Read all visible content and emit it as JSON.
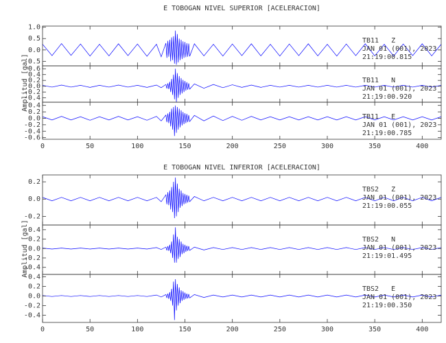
{
  "chart_data": [
    {
      "type": "line",
      "title": "E TOBOGAN NIVEL SUPERIOR [ACELERACION]",
      "ylabel": "Amplitud [gal]",
      "color": "#0000ff",
      "xlim": [
        0,
        420
      ],
      "xticks": [
        0,
        50,
        100,
        150,
        200,
        250,
        300,
        350,
        400
      ],
      "x": [
        0,
        10,
        20,
        30,
        40,
        50,
        60,
        70,
        80,
        90,
        100,
        110,
        120,
        125,
        130,
        131,
        132,
        133,
        134,
        135,
        136,
        137,
        138,
        139,
        140,
        141,
        142,
        143,
        144,
        145,
        146,
        147,
        148,
        149,
        150,
        151,
        152,
        153,
        154,
        155,
        160,
        170,
        180,
        190,
        200,
        210,
        220,
        230,
        240,
        250,
        260,
        270,
        280,
        290,
        300,
        310,
        320,
        330,
        340,
        350,
        360,
        370,
        380,
        390,
        400,
        410,
        420
      ],
      "panels": [
        {
          "station": "TB11   Z",
          "date": "JAN 01 (001), 2023",
          "time": "21:19:00.815",
          "ylim": [
            -0.7,
            1.05
          ],
          "yticks": [
            -0.5,
            {
              "value": 0,
              "label": "0.0"
            },
            0.5,
            {
              "value": 1,
              "label": "1.0"
            }
          ],
          "values": [
            0.25,
            -0.25,
            0.28,
            -0.24,
            0.26,
            -0.27,
            0.25,
            -0.26,
            0.27,
            -0.25,
            0.26,
            -0.28,
            0.25,
            -0.3,
            0.3,
            -0.35,
            0.4,
            -0.3,
            0.45,
            -0.5,
            0.55,
            -0.45,
            0.6,
            -0.6,
            0.85,
            -0.65,
            0.7,
            -0.55,
            0.5,
            -0.45,
            0.45,
            -0.4,
            0.38,
            -0.35,
            0.35,
            -0.32,
            0.3,
            -0.3,
            0.28,
            -0.28,
            0.27,
            -0.26,
            0.25,
            -0.27,
            0.26,
            -0.25,
            0.27,
            -0.26,
            0.25,
            -0.27,
            0.26,
            -0.25,
            0.27,
            -0.26,
            0.25,
            -0.27,
            0.26,
            -0.25,
            0.27,
            -0.26,
            0.25,
            -0.27,
            0.26,
            -0.25,
            0.27,
            -0.26,
            0.25
          ]
        },
        {
          "station": "TB11   N",
          "date": "JAN 01 (001), 2023",
          "time": "21:19:00.920",
          "ylim": [
            -0.55,
            0.7
          ],
          "yticks": [
            -0.4,
            -0.2,
            {
              "value": 0,
              "label": "0.0"
            },
            0.2,
            0.4,
            0.6
          ],
          "values": [
            0.03,
            -0.03,
            0.04,
            -0.03,
            0.03,
            -0.04,
            0.03,
            -0.03,
            0.04,
            -0.03,
            0.03,
            -0.04,
            0.04,
            -0.05,
            0.06,
            -0.08,
            0.1,
            -0.1,
            0.15,
            -0.2,
            0.25,
            -0.3,
            0.4,
            -0.45,
            0.6,
            -0.55,
            0.45,
            -0.4,
            0.35,
            -0.3,
            0.28,
            -0.25,
            0.22,
            -0.2,
            0.18,
            -0.15,
            0.14,
            -0.12,
            0.1,
            -0.1,
            0.08,
            -0.07,
            0.06,
            -0.05,
            0.05,
            -0.04,
            0.04,
            -0.04,
            0.03,
            -0.03,
            0.03,
            -0.03,
            0.03,
            -0.03,
            0.03,
            -0.03,
            0.03,
            -0.03,
            0.03,
            -0.03,
            0.03,
            -0.03,
            0.03,
            -0.03,
            0.03,
            -0.03,
            0.03
          ]
        },
        {
          "station": "TB11   E",
          "date": "JAN 01 (001), 2023",
          "time": "21:19:00.785",
          "ylim": [
            -0.65,
            0.5
          ],
          "yticks": [
            -0.6,
            -0.4,
            -0.2,
            {
              "value": 0,
              "label": "0.0"
            },
            0.2,
            0.4
          ],
          "values": [
            0.05,
            -0.05,
            0.06,
            -0.05,
            0.05,
            -0.06,
            0.05,
            -0.05,
            0.06,
            -0.05,
            0.05,
            -0.06,
            0.06,
            -0.08,
            0.1,
            -0.12,
            0.15,
            -0.15,
            0.2,
            -0.25,
            0.3,
            -0.35,
            0.35,
            -0.55,
            0.4,
            -0.45,
            0.35,
            -0.35,
            0.3,
            -0.28,
            0.25,
            -0.22,
            0.2,
            -0.18,
            0.16,
            -0.15,
            0.14,
            -0.12,
            0.1,
            -0.1,
            0.09,
            -0.08,
            0.07,
            -0.07,
            0.06,
            -0.06,
            0.06,
            -0.05,
            0.05,
            -0.05,
            0.05,
            -0.05,
            0.05,
            -0.05,
            0.05,
            -0.05,
            0.05,
            -0.05,
            0.05,
            -0.05,
            0.05,
            -0.05,
            0.05,
            -0.05,
            0.05,
            -0.05,
            0.05
          ]
        }
      ]
    },
    {
      "type": "line",
      "title": "E TOBOGAN NIVEL INFERIOR [ACELERACION]",
      "ylabel": "Amplitud [gal]",
      "color": "#0000ff",
      "xlim": [
        0,
        420
      ],
      "xticks": [
        0,
        50,
        100,
        150,
        200,
        250,
        300,
        350,
        400
      ],
      "x": [
        0,
        10,
        20,
        30,
        40,
        50,
        60,
        70,
        80,
        90,
        100,
        110,
        120,
        125,
        130,
        131,
        132,
        133,
        134,
        135,
        136,
        137,
        138,
        139,
        140,
        141,
        142,
        143,
        144,
        145,
        146,
        147,
        148,
        149,
        150,
        151,
        152,
        153,
        154,
        155,
        160,
        170,
        180,
        190,
        200,
        210,
        220,
        230,
        240,
        250,
        260,
        270,
        280,
        290,
        300,
        310,
        320,
        330,
        340,
        350,
        360,
        370,
        380,
        390,
        400,
        410,
        420
      ],
      "panels": [
        {
          "station": "TBS2   Z",
          "date": "JAN 01 (001), 2023",
          "time": "21:19:00.055",
          "ylim": [
            -0.3,
            0.28
          ],
          "yticks": [
            -0.2,
            {
              "value": 0,
              "label": "0.0"
            },
            0.2
          ],
          "values": [
            0.02,
            -0.02,
            0.02,
            -0.02,
            0.02,
            -0.02,
            0.02,
            -0.02,
            0.02,
            -0.02,
            0.02,
            -0.02,
            0.02,
            -0.03,
            0.05,
            -0.06,
            0.08,
            -0.07,
            0.1,
            -0.12,
            0.14,
            -0.15,
            0.2,
            -0.22,
            0.25,
            -0.2,
            0.18,
            -0.15,
            0.12,
            -0.1,
            0.1,
            -0.08,
            0.07,
            -0.06,
            0.06,
            -0.05,
            0.05,
            -0.04,
            0.04,
            -0.03,
            0.03,
            -0.02,
            0.02,
            -0.02,
            0.02,
            -0.02,
            0.02,
            -0.02,
            0.02,
            -0.02,
            0.02,
            -0.02,
            0.02,
            -0.02,
            0.02,
            -0.02,
            0.02,
            -0.02,
            0.02,
            -0.02,
            0.02,
            -0.02,
            0.02,
            -0.02,
            0.02,
            -0.02,
            0.02
          ]
        },
        {
          "station": "TBS2   N",
          "date": "JAN 01 (001), 2023",
          "time": "21:19:01.495",
          "ylim": [
            -0.55,
            0.5
          ],
          "yticks": [
            -0.4,
            -0.2,
            {
              "value": 0,
              "label": "0.0"
            },
            0.2,
            0.4
          ],
          "values": [
            0.01,
            -0.01,
            0.01,
            -0.01,
            0.01,
            -0.01,
            0.01,
            -0.01,
            0.01,
            -0.01,
            0.01,
            -0.01,
            0.02,
            -0.02,
            0.03,
            -0.04,
            0.05,
            -0.05,
            0.08,
            -0.1,
            0.15,
            -0.2,
            0.3,
            -0.3,
            0.45,
            -0.3,
            0.25,
            -0.22,
            0.2,
            -0.18,
            0.15,
            -0.12,
            0.1,
            -0.1,
            0.08,
            -0.07,
            0.06,
            -0.05,
            0.05,
            -0.04,
            0.03,
            -0.03,
            0.02,
            -0.02,
            0.02,
            -0.02,
            0.02,
            -0.02,
            0.02,
            -0.02,
            0.02,
            -0.02,
            0.02,
            -0.02,
            0.02,
            -0.02,
            0.02,
            -0.02,
            0.02,
            -0.02,
            0.02,
            -0.02,
            0.02,
            -0.02,
            0.02,
            -0.02,
            0.02
          ]
        },
        {
          "station": "TBS2   E",
          "date": "JAN 01 (001), 2023",
          "time": "21:19:00.350",
          "ylim": [
            -0.55,
            0.45
          ],
          "yticks": [
            -0.4,
            -0.2,
            {
              "value": 0,
              "label": "0.0"
            },
            0.2,
            0.4
          ],
          "values": [
            0.01,
            -0.01,
            0.01,
            -0.01,
            0.01,
            -0.01,
            0.01,
            -0.01,
            0.01,
            -0.01,
            0.01,
            -0.01,
            0.02,
            -0.02,
            0.03,
            -0.04,
            0.05,
            -0.06,
            0.08,
            -0.1,
            0.15,
            -0.2,
            0.3,
            -0.5,
            0.35,
            -0.3,
            0.25,
            -0.2,
            0.18,
            -0.15,
            0.12,
            -0.1,
            0.1,
            -0.08,
            0.07,
            -0.06,
            0.05,
            -0.05,
            0.04,
            -0.04,
            0.03,
            -0.03,
            0.02,
            -0.02,
            0.02,
            -0.02,
            0.02,
            -0.02,
            0.02,
            -0.02,
            0.02,
            -0.02,
            0.02,
            -0.02,
            0.02,
            -0.02,
            0.02,
            -0.02,
            0.02,
            -0.02,
            0.02,
            -0.02,
            0.02,
            -0.02,
            0.02,
            -0.02,
            0.02
          ]
        }
      ]
    }
  ]
}
